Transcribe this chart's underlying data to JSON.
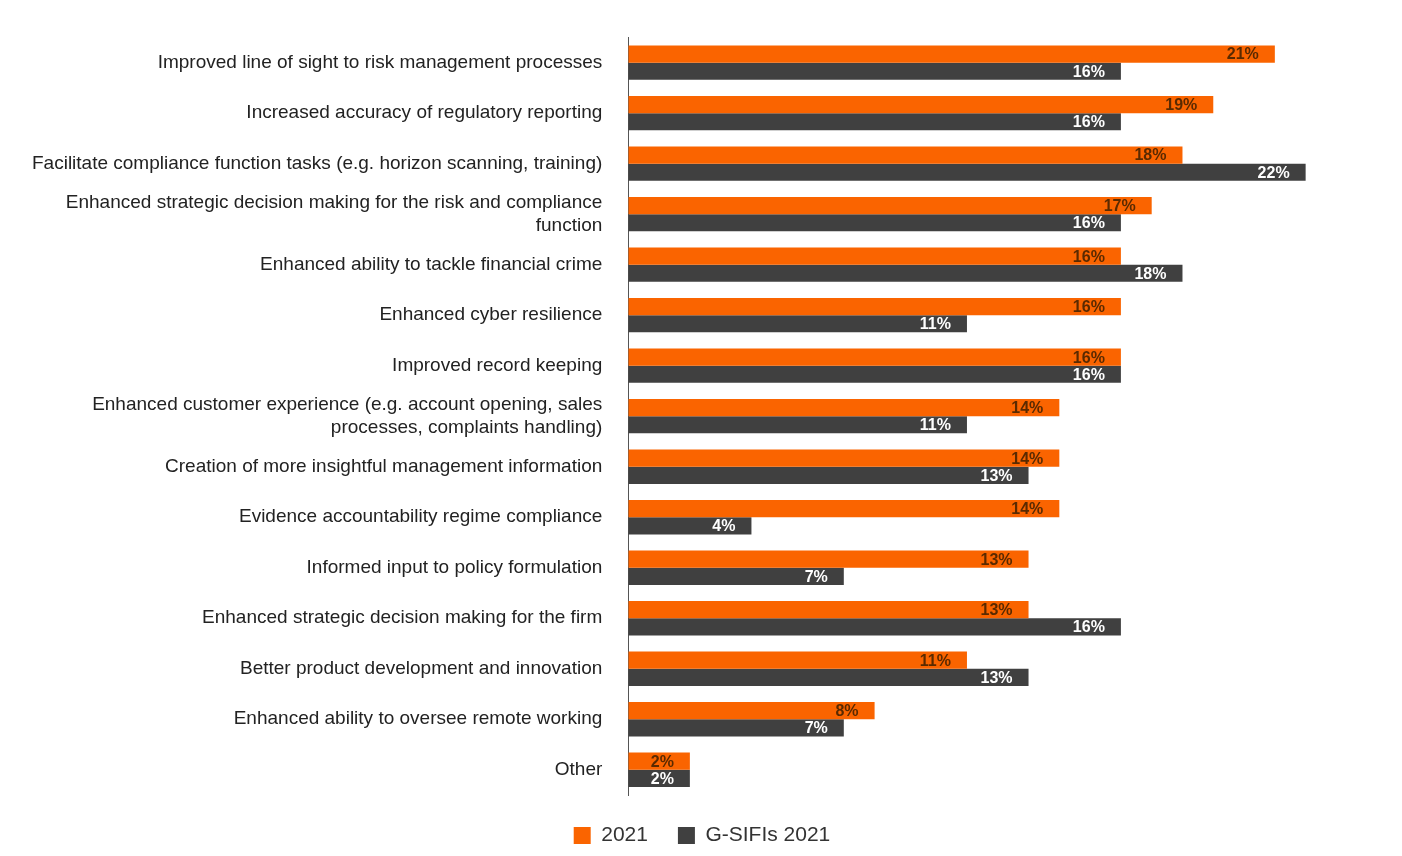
{
  "chart_data": {
    "type": "bar",
    "orientation": "horizontal",
    "categories": [
      "Improved line of sight to risk management processes",
      "Increased accuracy of regulatory reporting",
      "Facilitate compliance function tasks (e.g. horizon scanning, training)",
      "Enhanced strategic decision making for the risk and compliance function",
      "Enhanced ability to tackle financial crime",
      "Enhanced cyber resilience",
      "Improved record keeping",
      "Enhanced customer experience (e.g. account opening, sales processes, complaints handling)",
      "Creation of more insightful management information",
      "Evidence accountability regime compliance",
      "Informed input to policy formulation",
      "Enhanced strategic decision making for the firm",
      "Better product development and innovation",
      "Enhanced ability to oversee remote working",
      "Other"
    ],
    "series": [
      {
        "name": "2021",
        "color": "#fa6400",
        "values": [
          21,
          19,
          18,
          17,
          16,
          16,
          16,
          14,
          14,
          14,
          13,
          13,
          11,
          8,
          2
        ],
        "value_labels": [
          "21%",
          "19%",
          "18%",
          "17%",
          "16%",
          "16%",
          "16%",
          "14%",
          "14%",
          "14%",
          "13%",
          "13%",
          "11%",
          "8%",
          "2%"
        ]
      },
      {
        "name": "G-SIFIs 2021",
        "color": "#404040",
        "values": [
          16,
          16,
          22,
          16,
          18,
          11,
          16,
          11,
          13,
          4,
          7,
          16,
          13,
          7,
          2
        ],
        "value_labels": [
          "16%",
          "16%",
          "22%",
          "16%",
          "18%",
          "11%",
          "16%",
          "11%",
          "13%",
          "4%",
          "7%",
          "16%",
          "13%",
          "7%",
          "2%"
        ]
      }
    ],
    "tick_labels": "y",
    "legend": "bottom"
  }
}
